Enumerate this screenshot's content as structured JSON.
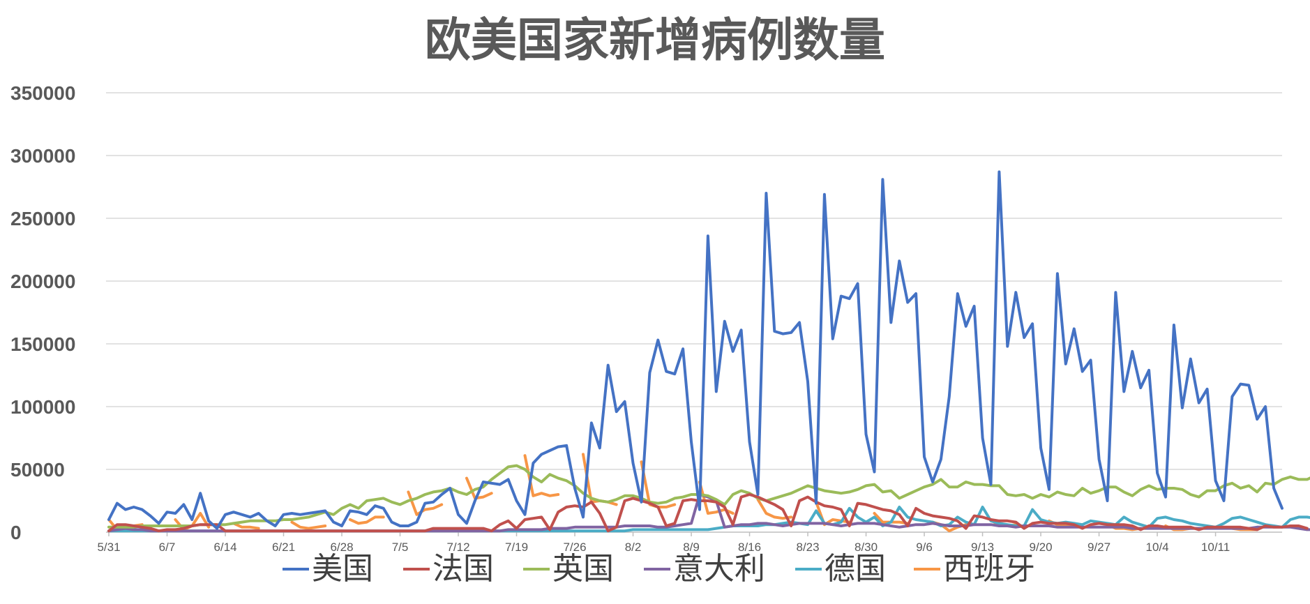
{
  "chart_data": {
    "type": "line",
    "title": "欧美国家新增病例数量",
    "xlabel": "",
    "ylabel": "",
    "ylim": [
      0,
      350000
    ],
    "yticks": [
      0,
      50000,
      100000,
      150000,
      200000,
      250000,
      300000,
      350000
    ],
    "x_tick_labels": [
      "5/31",
      "6/7",
      "6/14",
      "6/21",
      "6/28",
      "7/5",
      "7/12",
      "7/19",
      "7/26",
      "8/2",
      "8/9",
      "8/16",
      "8/23",
      "8/30",
      "9/6",
      "9/13",
      "9/20",
      "9/27",
      "10/4",
      "10/11"
    ],
    "x_start": "5/31",
    "grid": true,
    "legend_position": "bottom",
    "series": [
      {
        "name": "美国",
        "color": "#4472c4",
        "values": [
          10000,
          23000,
          18000,
          20000,
          18000,
          13000,
          7000,
          16000,
          15000,
          22000,
          10000,
          31000,
          9000,
          3000,
          14000,
          16000,
          14000,
          12000,
          15000,
          9000,
          5000,
          14000,
          15000,
          14000,
          15000,
          16000,
          17000,
          8000,
          5000,
          17000,
          16000,
          14000,
          21000,
          19000,
          8000,
          5000,
          5000,
          8000,
          23000,
          24000,
          30000,
          35000,
          14000,
          7000,
          25000,
          40000,
          39000,
          38000,
          42000,
          25000,
          14000,
          55000,
          62000,
          65000,
          68000,
          69000,
          35000,
          12000,
          87000,
          67000,
          133000,
          96000,
          104000,
          55000,
          24000,
          127000,
          153000,
          128000,
          126000,
          146000,
          72000,
          18000,
          236000,
          112000,
          168000,
          144000,
          161000,
          72000,
          30000,
          270000,
          160000,
          158000,
          159000,
          167000,
          120000,
          23000,
          269000,
          154000,
          188000,
          186000,
          198000,
          78000,
          48000,
          281000,
          167000,
          216000,
          183000,
          190000,
          60000,
          40000,
          58000,
          108000,
          190000,
          164000,
          180000,
          75000,
          38000,
          287000,
          148000,
          191000,
          155000,
          166000,
          67000,
          34000,
          206000,
          134000,
          162000,
          128000,
          137000,
          58000,
          25000,
          191000,
          112000,
          144000,
          115000,
          129000,
          47000,
          28000,
          165000,
          99000,
          138000,
          103000,
          114000,
          41000,
          25000,
          108000,
          118000,
          117000,
          90000,
          100000,
          35000,
          19000
        ]
      },
      {
        "name": "法国",
        "color": "#c0504d",
        "values": [
          1000,
          6000,
          6000,
          5000,
          4000,
          3000,
          1000,
          2000,
          2000,
          3000,
          5000,
          6000,
          6000,
          6000,
          1000,
          1000,
          1000,
          1000,
          1000,
          1000,
          1000,
          1000,
          1000,
          1000,
          1000,
          1000,
          1000,
          1000,
          1000,
          1000,
          1000,
          1000,
          1000,
          1000,
          1000,
          1000,
          1000,
          1000,
          1000,
          3000,
          3000,
          3000,
          3000,
          3000,
          3000,
          3000,
          1000,
          6000,
          9000,
          3000,
          10000,
          11000,
          12000,
          2000,
          16000,
          20000,
          21000,
          20000,
          24000,
          15000,
          1000,
          4000,
          25000,
          27000,
          25000,
          23000,
          20000,
          5000,
          7000,
          25000,
          26000,
          25000,
          25000,
          24000,
          20000,
          6000,
          28000,
          30000,
          28000,
          25000,
          22000,
          18000,
          5000,
          25000,
          28000,
          24000,
          21000,
          20000,
          18000,
          5000,
          23000,
          22000,
          20000,
          18000,
          17000,
          14000,
          5000,
          19000,
          15000,
          13000,
          12000,
          11000,
          9000,
          3000,
          13000,
          12000,
          10000,
          9000,
          9000,
          8000,
          3000,
          7000,
          8000,
          7000,
          7000,
          7000,
          6000,
          3000,
          6000,
          7000,
          6000,
          6000,
          6000,
          5000,
          2000,
          5000,
          5000,
          4000,
          4000,
          4000,
          4000,
          2000,
          4000,
          4000,
          4000,
          4000,
          4000,
          3000,
          2000,
          5000,
          4000,
          4000,
          5000,
          5000,
          3000
        ]
      },
      {
        "name": "英国",
        "color": "#9bbb59",
        "values": [
          4000,
          4000,
          4000,
          4000,
          5000,
          5000,
          5000,
          5000,
          5000,
          5000,
          5000,
          6000,
          6000,
          6000,
          6000,
          7000,
          8000,
          9000,
          9000,
          9000,
          9000,
          10000,
          10000,
          11000,
          12000,
          14000,
          16000,
          14000,
          19000,
          22000,
          19000,
          25000,
          26000,
          27000,
          24000,
          22000,
          25000,
          27000,
          30000,
          32000,
          33000,
          35000,
          32000,
          30000,
          34000,
          36000,
          42000,
          47000,
          52000,
          53000,
          50000,
          44000,
          40000,
          46000,
          43000,
          41000,
          37000,
          31000,
          27000,
          25000,
          24000,
          26000,
          29000,
          29000,
          27000,
          24000,
          23000,
          24000,
          27000,
          28000,
          30000,
          30000,
          29000,
          26000,
          22000,
          30000,
          33000,
          31000,
          27000,
          25000,
          27000,
          29000,
          31000,
          34000,
          37000,
          35000,
          33000,
          32000,
          31000,
          32000,
          34000,
          37000,
          38000,
          32000,
          33000,
          27000,
          30000,
          33000,
          36000,
          38000,
          42000,
          36000,
          36000,
          40000,
          38000,
          38000,
          37000,
          37000,
          30000,
          29000,
          30000,
          27000,
          30000,
          28000,
          32000,
          30000,
          29000,
          35000,
          31000,
          33000,
          36000,
          36000,
          32000,
          29000,
          34000,
          37000,
          34000,
          35000,
          35000,
          34000,
          30000,
          28000,
          33000,
          33000,
          37000,
          39000,
          35000,
          37000,
          32000,
          39000,
          38000,
          42000,
          44000,
          42000,
          42000,
          45000
        ]
      },
      {
        "name": "意大利",
        "color": "#8064a2",
        "values": [
          1000,
          2000,
          3000,
          2000,
          2000,
          1000,
          1000,
          1000,
          1000,
          1000,
          1000,
          1000,
          1000,
          1000,
          1000,
          1000,
          1000,
          1000,
          1000,
          1000,
          1000,
          1000,
          1000,
          1000,
          1000,
          1000,
          1000,
          1000,
          1000,
          1000,
          1000,
          1000,
          1000,
          1000,
          1000,
          1000,
          1000,
          1000,
          1000,
          1000,
          1000,
          1000,
          1000,
          1000,
          1000,
          1000,
          1000,
          1000,
          2000,
          2000,
          2000,
          2000,
          2000,
          3000,
          3000,
          3000,
          4000,
          4000,
          4000,
          4000,
          4000,
          4000,
          5000,
          5000,
          5000,
          5000,
          4000,
          4000,
          5000,
          6000,
          7000,
          30000,
          28000,
          25000,
          4000,
          5000,
          6000,
          6000,
          7000,
          7000,
          6000,
          5000,
          6000,
          7000,
          7000,
          7000,
          7000,
          6000,
          5000,
          6000,
          7000,
          7000,
          7000,
          6000,
          5000,
          4000,
          5000,
          6000,
          6000,
          7000,
          6000,
          5000,
          5000,
          5000,
          6000,
          6000,
          6000,
          5000,
          5000,
          4000,
          5000,
          5000,
          5000,
          5000,
          4000,
          4000,
          4000,
          4000,
          4000,
          4000,
          4000,
          4000,
          4000,
          3000,
          3000,
          3000,
          3000,
          3000,
          3000,
          3000,
          3000,
          3000,
          3000,
          3000,
          3000,
          3000,
          3000,
          3000,
          4000,
          4000,
          4000,
          4000,
          4000,
          3000,
          2000,
          2000
        ]
      },
      {
        "name": "德国",
        "color": "#4bacc6",
        "values": [
          1000,
          1000,
          1000,
          1000,
          1000,
          1000,
          1000,
          1000,
          1000,
          1000,
          1000,
          1000,
          1000,
          1000,
          1000,
          1000,
          1000,
          1000,
          1000,
          1000,
          1000,
          1000,
          1000,
          1000,
          1000,
          1000,
          1000,
          1000,
          1000,
          1000,
          1000,
          1000,
          1000,
          1000,
          1000,
          1000,
          1000,
          1000,
          1000,
          1000,
          1000,
          1000,
          1000,
          1000,
          1000,
          1000,
          1000,
          1000,
          1000,
          1000,
          1000,
          1000,
          1000,
          1000,
          1000,
          1000,
          1000,
          1000,
          1000,
          1000,
          1000,
          1000,
          1000,
          2000,
          2000,
          2000,
          2000,
          2000,
          2000,
          2000,
          2000,
          2000,
          2000,
          3000,
          4000,
          5000,
          5000,
          5000,
          5000,
          6000,
          6000,
          7000,
          8000,
          7000,
          6000,
          17000,
          7000,
          6000,
          8000,
          19000,
          12000,
          8000,
          12000,
          5000,
          8000,
          20000,
          12000,
          10000,
          9000,
          8000,
          5000,
          6000,
          12000,
          8000,
          6000,
          20000,
          9000,
          7000,
          6000,
          5000,
          5000,
          18000,
          10000,
          8000,
          7000,
          8000,
          7000,
          6000,
          9000,
          8000,
          7000,
          6000,
          12000,
          8000,
          6000,
          4000,
          11000,
          12000,
          10000,
          9000,
          7000,
          6000,
          5000,
          4000,
          7000,
          11000,
          12000,
          10000,
          8000,
          6000,
          5000,
          4000,
          10000,
          12000,
          12000,
          11000,
          9000,
          5000
        ]
      },
      {
        "name": "西班牙",
        "color": "#f79646",
        "segments": [
          {
            "start": "5/31",
            "values": [
              10000,
              2000,
              3000,
              5000,
              6000
            ]
          },
          {
            "start": "6/8",
            "values": [
              10000,
              2000,
              5000,
              15000,
              4000
            ]
          },
          {
            "start": "6/15",
            "values": [
              7000,
              4000,
              4000,
              3000
            ]
          },
          {
            "start": "6/22",
            "values": [
              8000,
              4000,
              3000,
              4000,
              5000
            ]
          },
          {
            "start": "6/29",
            "values": [
              10000,
              7000,
              8000,
              12000,
              12000
            ]
          },
          {
            "start": "7/6",
            "values": [
              32000,
              14000,
              18000,
              19000,
              22000
            ]
          },
          {
            "start": "7/13",
            "values": [
              43000,
              27000,
              28000,
              31000
            ]
          },
          {
            "start": "7/20",
            "values": [
              61000,
              29000,
              31000,
              29000,
              30000
            ]
          },
          {
            "start": "7/27",
            "values": [
              62000,
              24000,
              25000,
              24000,
              22000
            ]
          },
          {
            "start": "8/3",
            "values": [
              56000,
              22000,
              20000,
              20000,
              22000
            ]
          },
          {
            "start": "8/10",
            "values": [
              40000,
              15000,
              16000,
              18000,
              15000
            ]
          },
          {
            "start": "8/17",
            "values": [
              26000,
              15000,
              12000,
              11000,
              12000
            ]
          },
          {
            "start": "8/24",
            "values": [
              24000,
              6000,
              10000,
              9000,
              8000
            ]
          },
          {
            "start": "8/31",
            "values": [
              15000,
              8000,
              8000,
              8000,
              7000
            ]
          },
          {
            "start": "9/7",
            "values": [
              8000,
              6000,
              1000,
              4000,
              6000
            ]
          },
          {
            "start": "9/14",
            "values": [
              10000,
              5000,
              5000,
              6000,
              4000
            ]
          },
          {
            "start": "9/21",
            "values": [
              9000,
              6000,
              6000,
              5000,
              4000
            ]
          },
          {
            "start": "9/28",
            "values": [
              6000,
              3000,
              3000,
              2000,
              3000
            ]
          },
          {
            "start": "10/5",
            "values": [
              5000,
              2000,
              2000,
              3000,
              3000
            ]
          },
          {
            "start": "10/12",
            "values": [
              4000,
              3000,
              2000,
              2000,
              2000
            ]
          }
        ]
      }
    ]
  }
}
